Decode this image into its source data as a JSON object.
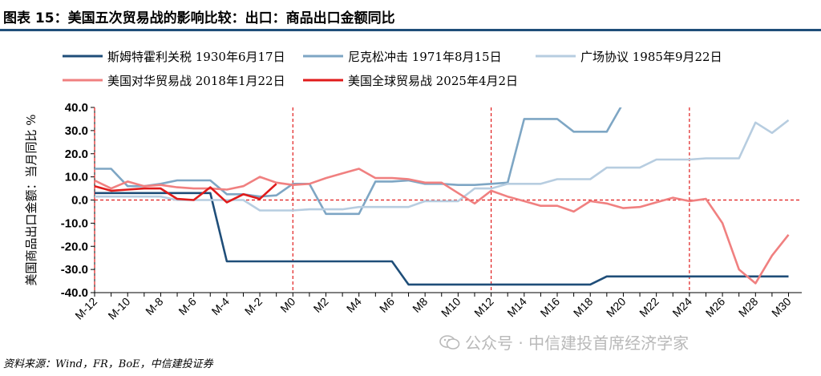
{
  "header": {
    "title": "图表 15：美国五次贸易战的影响比较：出口：商品出口金额同比"
  },
  "footer": {
    "source": "资料来源：Wind，FR，BoE，中信建投证券"
  },
  "watermark": {
    "text": "公众号 · 中信建投首席经济学家",
    "icon": "wechat-icon"
  },
  "chart_data": {
    "type": "line",
    "title": "图表 15：美国五次贸易战的影响比较：出口：商品出口金额同比",
    "ylabel": "美国商品出口金额：当月同比 %",
    "xlabel": "",
    "ylim": [
      -40,
      40
    ],
    "yticks": [
      "40.0",
      "30.0",
      "20.0",
      "10.0",
      "0.0",
      "-10.0",
      "-20.0",
      "-30.0",
      "-40.0"
    ],
    "x": [
      -12,
      -11,
      -10,
      -9,
      -8,
      -7,
      -6,
      -5,
      -4,
      -3,
      -2,
      -1,
      0,
      1,
      2,
      3,
      4,
      5,
      6,
      7,
      8,
      9,
      10,
      11,
      12,
      13,
      14,
      15,
      16,
      17,
      18,
      19,
      20,
      21,
      22,
      23,
      24,
      25,
      26,
      27,
      28,
      29,
      30
    ],
    "xticks": [
      "M-12",
      "M-10",
      "M-8",
      "M-6",
      "M-4",
      "M-2",
      "M0",
      "M2",
      "M4",
      "M6",
      "M8",
      "M10",
      "M12",
      "M14",
      "M16",
      "M18",
      "M20",
      "M22",
      "M24",
      "M26",
      "M28",
      "M30"
    ],
    "vlines": [
      -12,
      0,
      12,
      24
    ],
    "grid": false,
    "legend_position": "top",
    "series": [
      {
        "name": "斯姆特霍利关税 1930年6月17日",
        "color": "#1f4e79",
        "values": [
          3,
          3,
          3,
          3,
          3,
          3,
          3,
          3,
          -26.5,
          -26.5,
          -26.5,
          -26.5,
          -26.5,
          -26.5,
          -26.5,
          -26.5,
          -26.5,
          -26.5,
          -26.5,
          -36.5,
          -36.5,
          -36.5,
          -36.5,
          -36.5,
          -36.5,
          -36.5,
          -36.5,
          -36.5,
          -36.5,
          -36.5,
          -36.5,
          -33,
          -33,
          -33,
          -33,
          -33,
          -33,
          -33,
          -33,
          -33,
          -33,
          -33,
          -33
        ]
      },
      {
        "name": "尼克松冲击 1971年8月15日",
        "color": "#7ea6c4",
        "values": [
          13.5,
          13.5,
          6,
          6,
          7,
          8.5,
          8.5,
          8.5,
          2.5,
          2.5,
          1.5,
          2,
          7,
          7,
          -6,
          -6,
          -6,
          8,
          8,
          8.5,
          7,
          7,
          6.5,
          6.5,
          7,
          7.5,
          35,
          35,
          35,
          29.5,
          29.5,
          29.5,
          42,
          null,
          null,
          null,
          null,
          null,
          null,
          null,
          null,
          null,
          null
        ]
      },
      {
        "name": "广场协议 1985年9月22日",
        "color": "#b7cde0",
        "values": [
          1.5,
          1.5,
          1.5,
          1.5,
          1.5,
          0,
          0,
          0,
          0,
          0,
          -4.5,
          -4.5,
          -4.5,
          -4,
          -4,
          -4,
          -3,
          -3,
          -3,
          -3,
          -0.5,
          -0.5,
          -0.5,
          5,
          5,
          7,
          7,
          7,
          9,
          9,
          9,
          14,
          14,
          14,
          17.5,
          17.5,
          17.5,
          18,
          18,
          18,
          33.5,
          29,
          34.5
        ]
      },
      {
        "name": "美国对华贸易战 2018年1月22日",
        "color": "#f08080",
        "values": [
          8.5,
          5,
          8,
          6,
          6.5,
          5.5,
          5,
          5,
          4.5,
          6,
          10,
          7.5,
          6.5,
          7,
          9.5,
          11.5,
          13.5,
          9.5,
          9.5,
          9,
          7.5,
          7.5,
          3,
          -1.5,
          4,
          1.5,
          -0.5,
          -2.5,
          -2.5,
          -5,
          -0.5,
          -1.5,
          -3.5,
          -3,
          -1,
          1,
          -0.5,
          0.5,
          -10,
          -30,
          -36,
          -24,
          -15
        ]
      },
      {
        "name": "美国全球贸易战 2025年4月2日",
        "color": "#e01b1b",
        "values": [
          6,
          4,
          4.5,
          5,
          5,
          0.5,
          0,
          5.5,
          -1,
          2.5,
          0.5,
          7,
          null,
          null,
          null,
          null,
          null,
          null,
          null,
          null,
          null,
          null,
          null,
          null,
          null,
          null,
          null,
          null,
          null,
          null,
          null,
          null,
          null,
          null,
          null,
          null,
          null,
          null,
          null,
          null,
          null,
          null,
          null
        ]
      }
    ]
  }
}
